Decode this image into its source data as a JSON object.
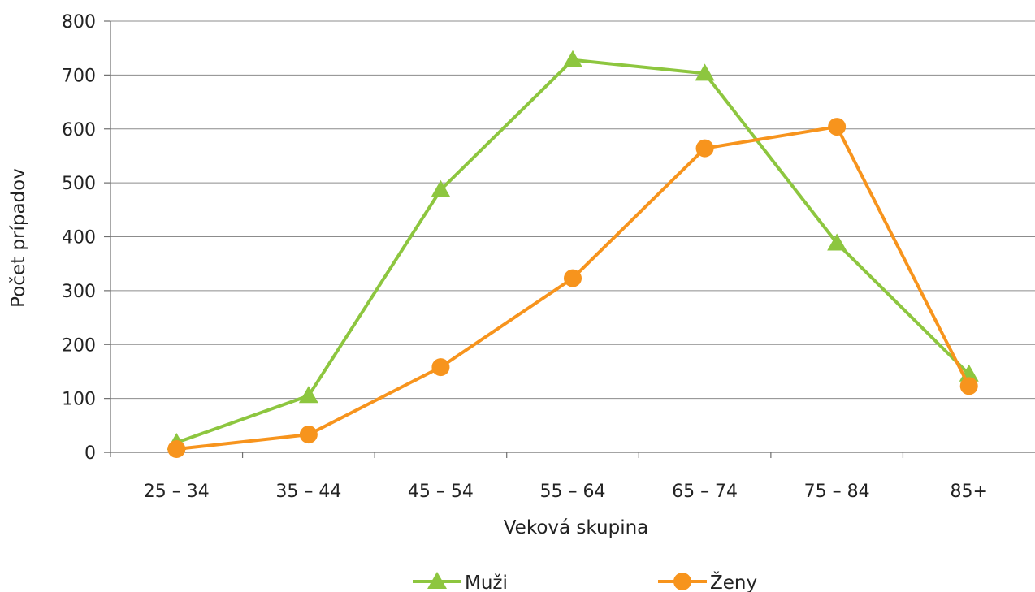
{
  "chart_data": {
    "type": "line",
    "categories": [
      "25 – 34",
      "35 – 44",
      "45 – 54",
      "55 – 64",
      "65 – 74",
      "75 – 84",
      "85+"
    ],
    "series": [
      {
        "name": "Muži",
        "values": [
          18,
          105,
          487,
          728,
          703,
          388,
          145
        ],
        "color": "#8dc63f",
        "marker": "triangle"
      },
      {
        "name": "Ženy",
        "values": [
          6,
          33,
          158,
          323,
          564,
          604,
          123
        ],
        "color": "#f7941d",
        "marker": "circle"
      }
    ],
    "xlabel": "Veková skupina",
    "ylabel": "Počet prípadov",
    "ylim": [
      0,
      800
    ],
    "yticks": [
      0,
      100,
      200,
      300,
      400,
      500,
      600,
      700,
      800
    ],
    "grid": true,
    "legend_position": "bottom"
  }
}
